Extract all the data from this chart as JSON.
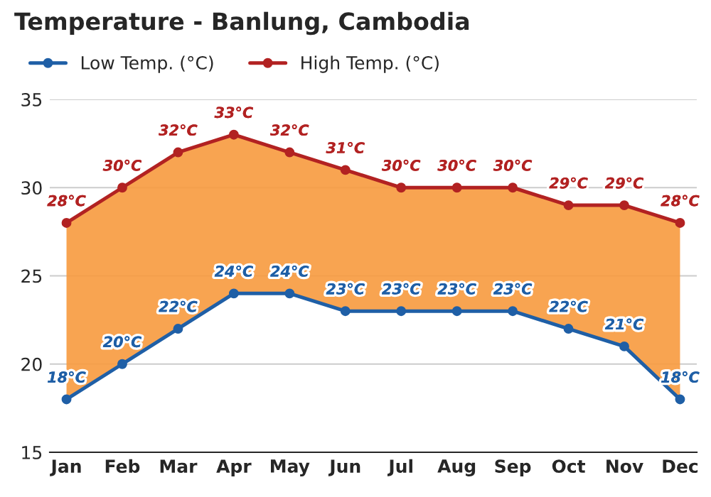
{
  "chart_data": {
    "type": "line",
    "title": "Temperature - Banlung, Cambodia",
    "categories": [
      "Jan",
      "Feb",
      "Mar",
      "Apr",
      "May",
      "Jun",
      "Jul",
      "Aug",
      "Sep",
      "Oct",
      "Nov",
      "Dec"
    ],
    "series": [
      {
        "name": "Low Temp. (°C)",
        "color": "#1f5fa6",
        "values": [
          18,
          20,
          22,
          24,
          24,
          23,
          23,
          23,
          23,
          22,
          21,
          18
        ],
        "value_labels": [
          "18°C",
          "20°C",
          "22°C",
          "24°C",
          "24°C",
          "23°C",
          "23°C",
          "23°C",
          "23°C",
          "22°C",
          "21°C",
          "18°C"
        ]
      },
      {
        "name": "High Temp. (°C)",
        "color": "#b22222",
        "values": [
          28,
          30,
          32,
          33,
          32,
          31,
          30,
          30,
          30,
          29,
          29,
          28
        ],
        "value_labels": [
          "28°C",
          "30°C",
          "32°C",
          "33°C",
          "32°C",
          "31°C",
          "30°C",
          "30°C",
          "30°C",
          "29°C",
          "29°C",
          "28°C"
        ],
        "lower": [
          18,
          20,
          22,
          24,
          24,
          23,
          23,
          23,
          23,
          22,
          21,
          18
        ],
        "upper": [
          28,
          30,
          32,
          33,
          32,
          31,
          30,
          30,
          30,
          29,
          29,
          28
        ]
      }
    ],
    "ylim": [
      15,
      35
    ],
    "yticks": [
      15,
      20,
      25,
      30,
      35
    ],
    "grid": "y",
    "legend": "top left",
    "marker": "circle",
    "line_style": "solid"
  }
}
